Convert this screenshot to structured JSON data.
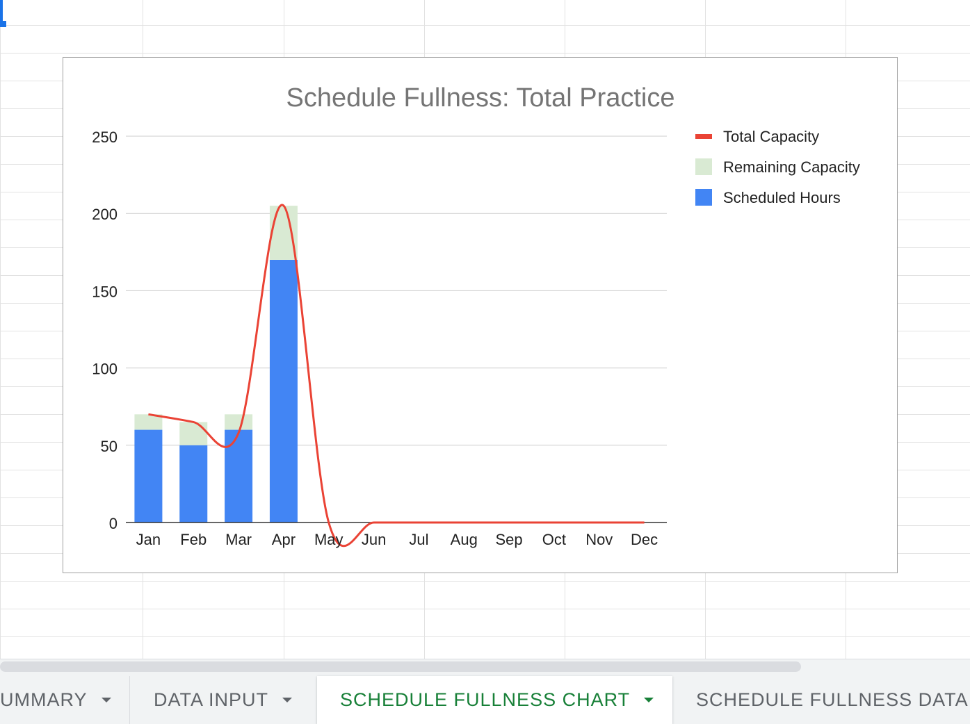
{
  "sheet_tabs": [
    {
      "label": "UMMARY",
      "active": false
    },
    {
      "label": "DATA INPUT",
      "active": false
    },
    {
      "label": "SCHEDULE FULLNESS CHART",
      "active": true
    },
    {
      "label": "SCHEDULE FULLNESS DATA",
      "active": false
    }
  ],
  "colors": {
    "scheduled": "#4285f4",
    "remaining": "#d9ead3",
    "capacity_line": "#ea4335",
    "title": "#757575",
    "text": "#222222",
    "gridline": "#cccccc",
    "axis": "#333333",
    "accent": "#1a73e8",
    "active_tab": "#188038"
  },
  "chart_data": {
    "type": "bar",
    "title": "Schedule Fullness: Total Practice",
    "stacked": true,
    "categories": [
      "Jan",
      "Feb",
      "Mar",
      "Apr",
      "May",
      "Jun",
      "Jul",
      "Aug",
      "Sep",
      "Oct",
      "Nov",
      "Dec"
    ],
    "series": [
      {
        "name": "Scheduled Hours",
        "kind": "bar",
        "values": [
          60,
          50,
          60,
          170,
          0,
          0,
          0,
          0,
          0,
          0,
          0,
          0
        ]
      },
      {
        "name": "Remaining Capacity",
        "kind": "bar",
        "values": [
          10,
          15,
          10,
          35,
          0,
          0,
          0,
          0,
          0,
          0,
          0,
          0
        ]
      },
      {
        "name": "Total Capacity",
        "kind": "line",
        "smooth": true,
        "values": [
          70,
          65,
          58,
          205,
          0,
          0,
          0,
          0,
          0,
          0,
          0,
          0
        ]
      }
    ],
    "legend": [
      "Total Capacity",
      "Remaining Capacity",
      "Scheduled Hours"
    ],
    "legend_position": "right",
    "y_ticks": [
      0,
      50,
      100,
      150,
      200,
      250
    ],
    "ylim": [
      0,
      250
    ],
    "grid": true
  }
}
